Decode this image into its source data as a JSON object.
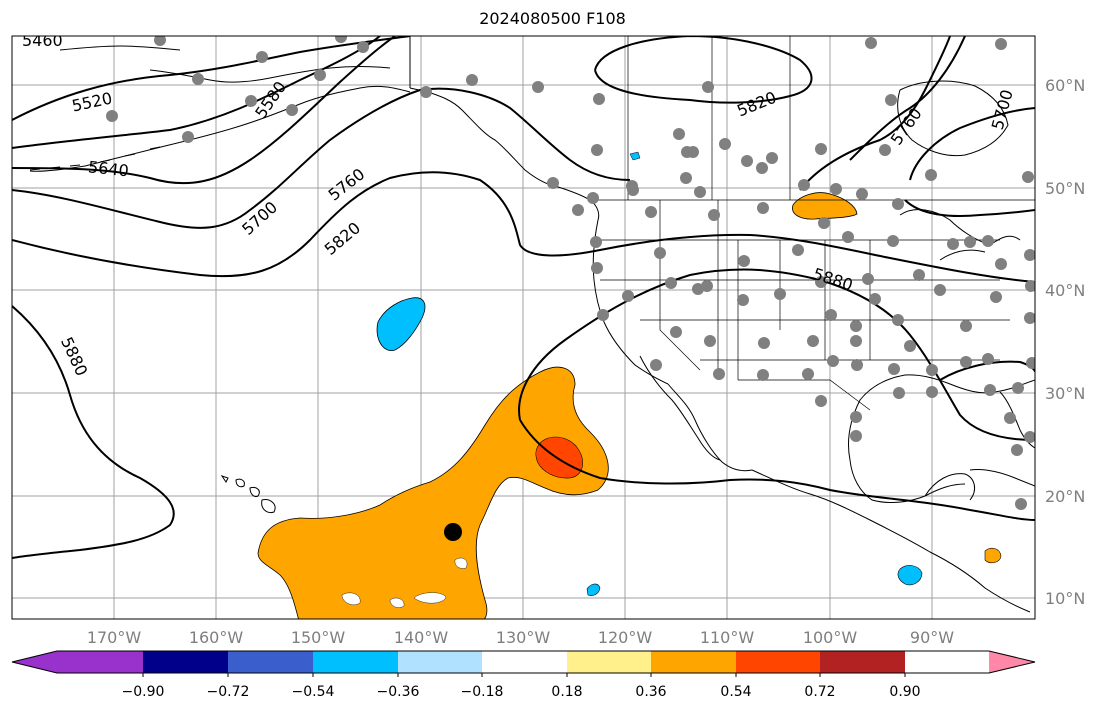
{
  "title": "2024080500 F108",
  "map": {
    "lon_labels": [
      "170°W",
      "160°W",
      "150°W",
      "140°W",
      "130°W",
      "120°W",
      "110°W",
      "100°W",
      "90°W"
    ],
    "lat_labels": [
      "60°N",
      "50°N",
      "40°N",
      "30°N",
      "20°N",
      "10°N"
    ],
    "contour_labels": [
      "5460",
      "5520",
      "5580",
      "5640",
      "5700",
      "5760",
      "5820",
      "5880",
      "5820",
      "5760",
      "5700",
      "5880"
    ],
    "colors": {
      "grid": "#a0a0a0",
      "station": "#808080",
      "marker": "#000000",
      "anomaly_positive_low": "#ffa500",
      "anomaly_positive_high": "#ff4500",
      "anomaly_negative": "#00bfff"
    }
  },
  "colorbar": {
    "ticks": [
      "−0.90",
      "−0.72",
      "−0.54",
      "−0.36",
      "−0.18",
      "0.18",
      "0.36",
      "0.54",
      "0.72",
      "0.90"
    ],
    "colors": [
      "#9932cc",
      "#00008b",
      "#3a5fcd",
      "#00bfff",
      "#b0e2ff",
      "#ffffff",
      "#fff08c",
      "#ffa500",
      "#ff4500",
      "#b22222",
      "#ff88a8"
    ]
  }
}
